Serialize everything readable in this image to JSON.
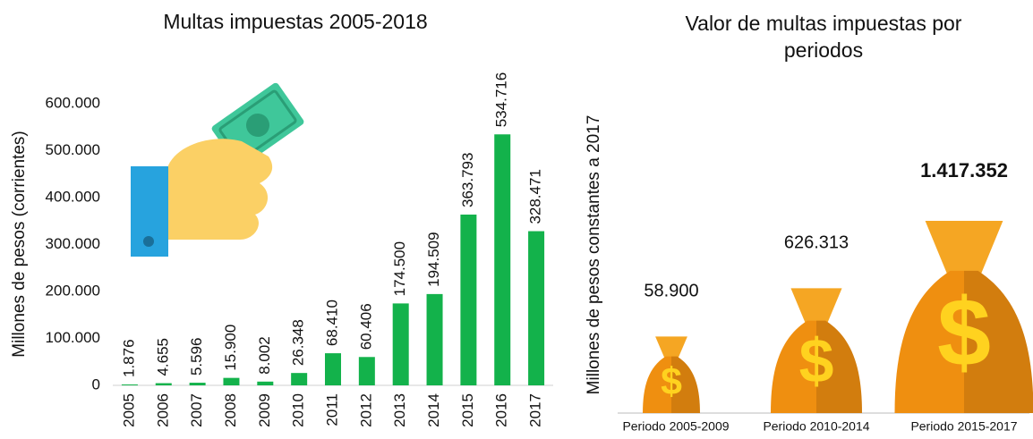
{
  "chart_data": [
    {
      "type": "bar",
      "title": "Multas impuestas 2005-2018",
      "y_label": "Millones de pesos (corrientes)",
      "categories": [
        "2005",
        "2006",
        "2007",
        "2008",
        "2009",
        "2010",
        "2011",
        "2012",
        "2013",
        "2014",
        "2015",
        "2016",
        "2017"
      ],
      "values": [
        1876,
        4655,
        5596,
        15900,
        8002,
        26348,
        68410,
        60406,
        174500,
        194509,
        363793,
        534716,
        328471
      ],
      "value_labels": [
        "1.876",
        "4.655",
        "5.596",
        "15.900",
        "8.002",
        "26.348",
        "68.410",
        "60.406",
        "174.500",
        "194.509",
        "363.793",
        "534.716",
        "328.471"
      ],
      "color": "#13b24b",
      "ylim": [
        0,
        600000
      ],
      "yticks": [
        0,
        {
          "value": 100000,
          "label": "100.000"
        },
        {
          "value": 200000,
          "label": "200.000"
        },
        {
          "value": 300000,
          "label": "300.000"
        },
        {
          "value": 400000,
          "label": "400.000"
        },
        {
          "value": 500000,
          "label": "500.000"
        },
        {
          "value": 600000,
          "label": "600.000"
        }
      ]
    },
    {
      "type": "pictogram",
      "title": "Valor de multas impuestas por periodos",
      "y_label": "Millones de pesos constantes a 2017",
      "categories": [
        "Periodo 2005-2009",
        "Periodo 2010-2014",
        "Periodo 2015-2017"
      ],
      "values": [
        58900,
        626313,
        1417352
      ],
      "value_labels": [
        "58.900",
        "626.313",
        "1.417.352"
      ],
      "color": "#ef8f10"
    }
  ]
}
